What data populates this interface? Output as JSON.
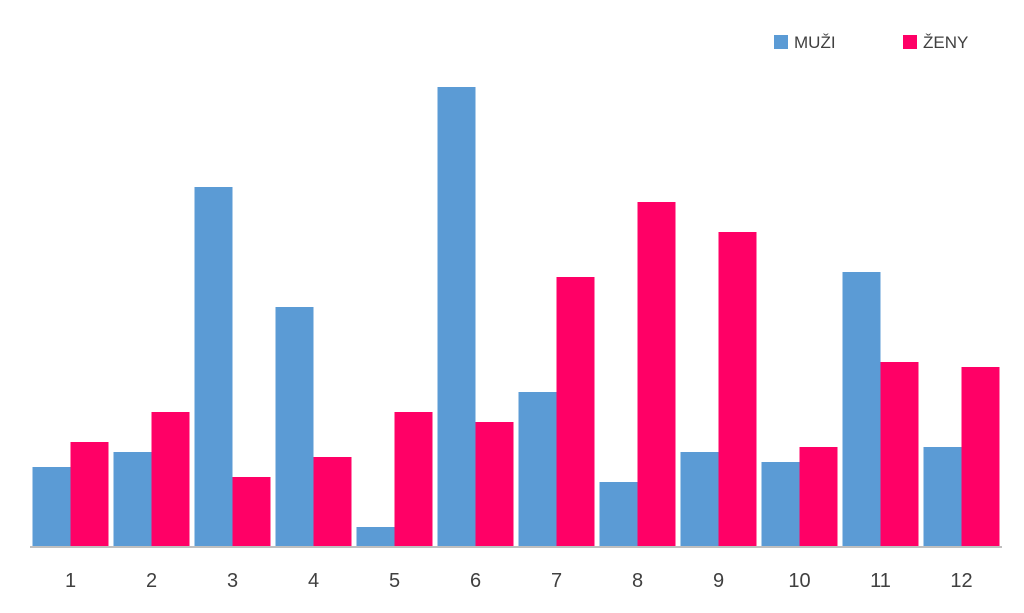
{
  "chart_data": {
    "type": "bar",
    "title": "",
    "xlabel": "",
    "ylabel": "",
    "categories": [
      "1",
      "2",
      "3",
      "4",
      "5",
      "6",
      "7",
      "8",
      "9",
      "10",
      "11",
      "12"
    ],
    "series": [
      {
        "name": "MUŽI",
        "color": "#5B9BD5",
        "values": [
          16,
          19,
          72,
          48,
          4,
          92,
          31,
          13,
          19,
          17,
          55,
          20
        ]
      },
      {
        "name": "ŽENY",
        "color": "#FF0066",
        "values": [
          21,
          27,
          14,
          18,
          27,
          25,
          54,
          69,
          63,
          20,
          37,
          36
        ]
      }
    ],
    "ylim": [
      0,
      92
    ],
    "grid": false,
    "legend_position": "top-right",
    "axis_color": "#BFBFBF"
  }
}
